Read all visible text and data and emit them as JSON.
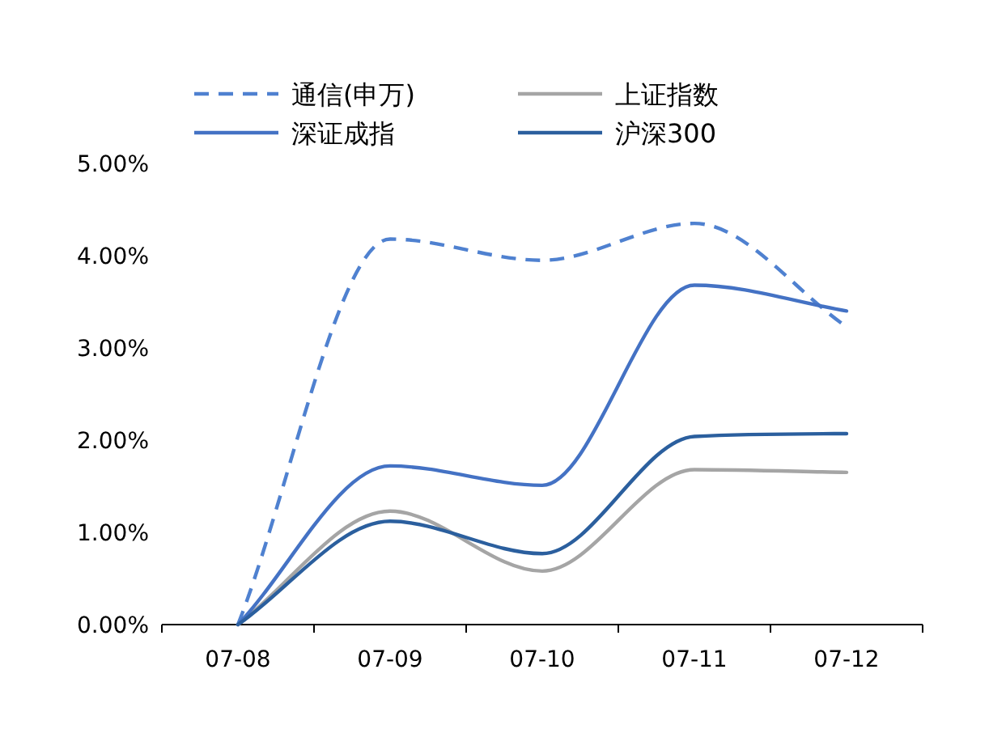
{
  "chart_data": {
    "type": "line",
    "categories": [
      "07-08",
      "07-09",
      "07-10",
      "07-11",
      "07-12"
    ],
    "series": [
      {
        "name": "通信(申万)",
        "color": "#4f81d0",
        "line_style": "dashed",
        "values": [
          0,
          4.18,
          3.95,
          4.35,
          3.23
        ]
      },
      {
        "name": "上证指数",
        "color": "#a5a5a5",
        "line_style": "solid",
        "values": [
          0,
          1.23,
          0.58,
          1.68,
          1.65
        ]
      },
      {
        "name": "深证成指",
        "color": "#4472c4",
        "line_style": "solid",
        "values": [
          0,
          1.72,
          1.51,
          3.68,
          3.4
        ]
      },
      {
        "name": "沪深300",
        "color": "#2b5f9e",
        "line_style": "solid",
        "values": [
          0,
          1.12,
          0.77,
          2.04,
          2.07
        ]
      }
    ],
    "ylim": [
      0,
      5
    ],
    "yticks": [
      {
        "value": 0,
        "label": "0.00%"
      },
      {
        "value": 1,
        "label": "1.00%"
      },
      {
        "value": 2,
        "label": "2.00%"
      },
      {
        "value": 3,
        "label": "3.00%"
      },
      {
        "value": 4,
        "label": "4.00%"
      },
      {
        "value": 5,
        "label": "5.00%"
      }
    ],
    "legend": "top",
    "grid": false,
    "marker": "none"
  }
}
